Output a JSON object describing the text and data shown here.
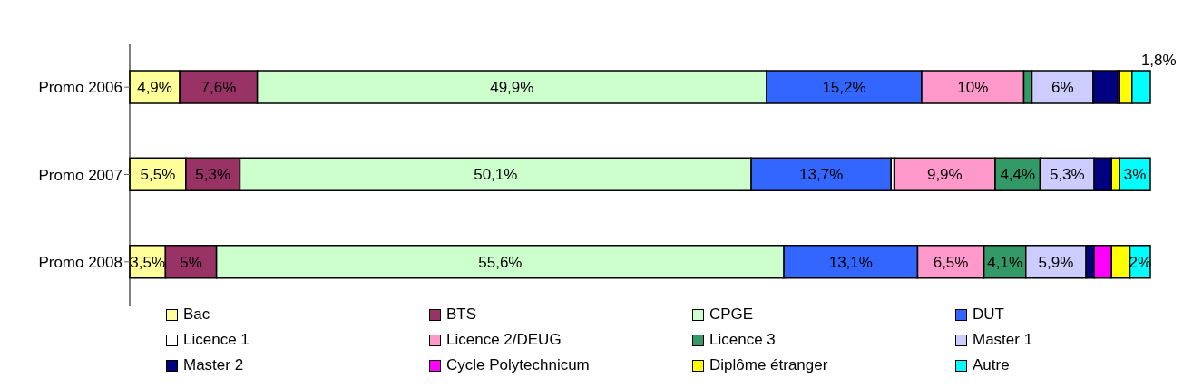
{
  "chart_data": {
    "type": "bar",
    "orientation": "horizontal",
    "stacked": true,
    "legend": "bottom",
    "categories": [
      "Promo 2006",
      "Promo 2007",
      "Promo 2008"
    ],
    "series": [
      {
        "name": "Bac",
        "color": "#ffff99",
        "values": [
          4.9,
          5.5,
          3.5
        ],
        "value_labels": [
          "4,9%",
          "5,5%",
          "3,5%"
        ]
      },
      {
        "name": "BTS",
        "color": "#993366",
        "values": [
          7.6,
          5.3,
          5
        ],
        "value_labels": [
          "7,6%",
          "5,3%",
          "5%"
        ]
      },
      {
        "name": "CPGE",
        "color": "#ccffcc",
        "values": [
          49.9,
          50.1,
          55.6
        ],
        "value_labels": [
          "49,9%",
          "50,1%",
          "55,6%"
        ]
      },
      {
        "name": "DUT",
        "color": "#3366ff",
        "values": [
          15.2,
          13.7,
          13.1
        ],
        "value_labels": [
          "15,2%",
          "13,7%",
          "13,1%"
        ]
      },
      {
        "name": "Licence 1",
        "color": "#ffffff",
        "values": [
          0,
          0.3,
          0
        ],
        "value_labels": [
          null,
          null,
          null
        ]
      },
      {
        "name": "Licence 2/DEUG",
        "color": "#ff99cc",
        "values": [
          10,
          9.9,
          6.5
        ],
        "value_labels": [
          "10%",
          "9,9%",
          "6,5%"
        ]
      },
      {
        "name": "Licence 3",
        "color": "#339966",
        "values": [
          0.8,
          4.4,
          4.1
        ],
        "value_labels": [
          null,
          "4,4%",
          "4,1%"
        ]
      },
      {
        "name": "Master 1",
        "color": "#ccccff",
        "values": [
          6,
          5.3,
          5.9
        ],
        "value_labels": [
          "6%",
          "5,3%",
          "5,9%"
        ]
      },
      {
        "name": "Master 2",
        "color": "#000080",
        "values": [
          2.4,
          1.7,
          0.8
        ],
        "value_labels": [
          null,
          null,
          null
        ]
      },
      {
        "name": "Cycle Polytechnicum",
        "color": "#ff00ff",
        "values": [
          0.2,
          0,
          1.7
        ],
        "value_labels": [
          null,
          null,
          null
        ]
      },
      {
        "name": "Diplôme étranger",
        "color": "#ffff00",
        "values": [
          1.2,
          0.8,
          1.8
        ],
        "value_labels": [
          null,
          null,
          null
        ]
      },
      {
        "name": "Autre",
        "color": "#00ffff",
        "values": [
          1.8,
          3,
          2
        ],
        "value_labels": [
          "1,8%",
          "3%",
          "2%"
        ]
      }
    ]
  }
}
